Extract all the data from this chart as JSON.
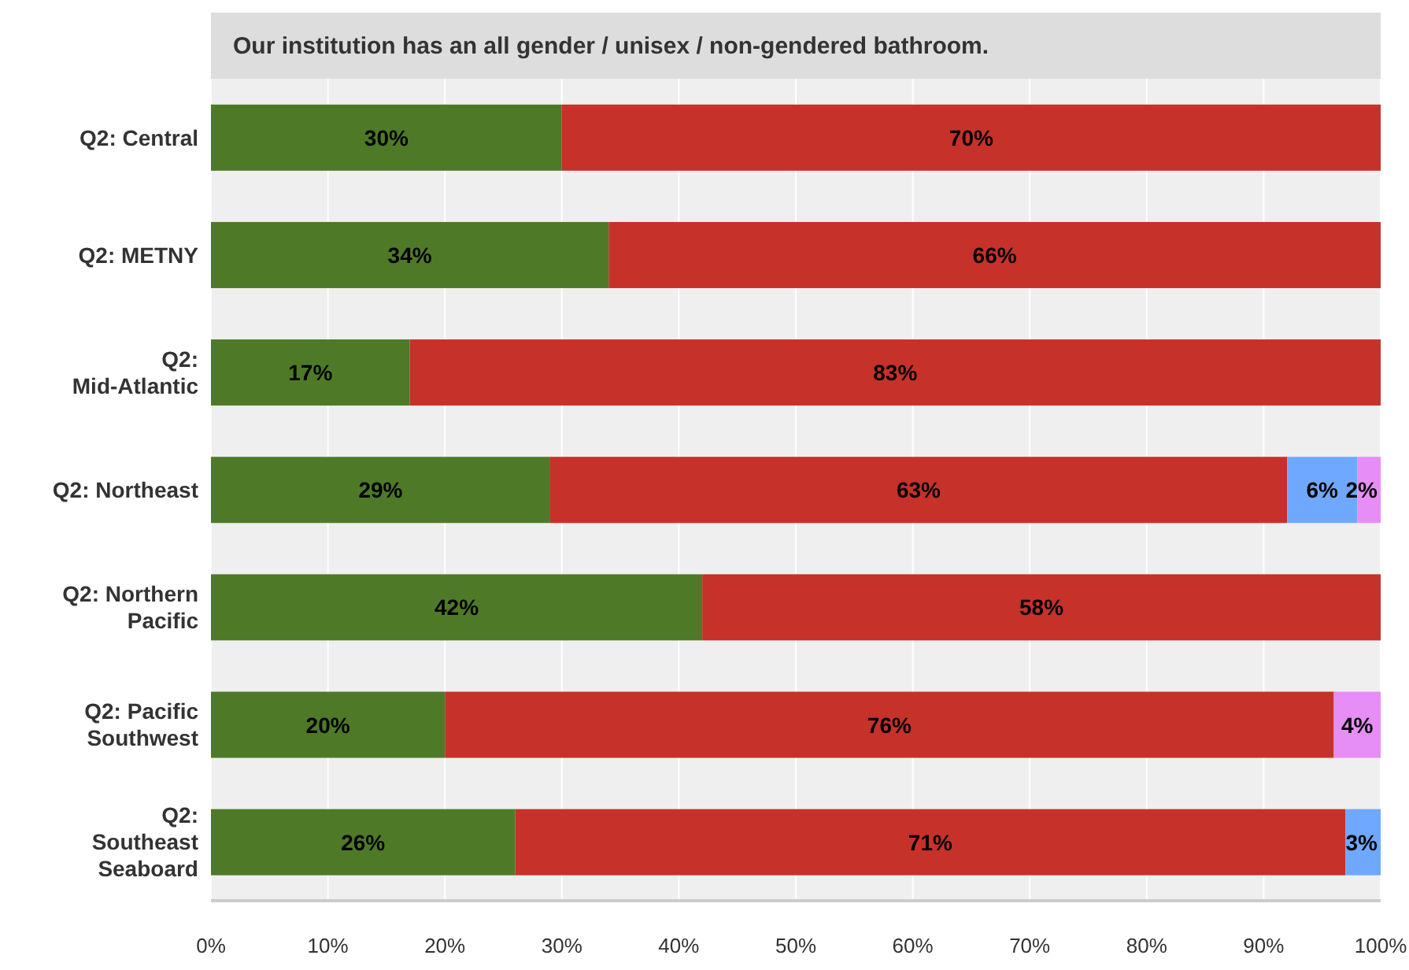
{
  "chart_data": {
    "type": "bar",
    "orientation": "horizontal",
    "stacked": true,
    "title": "Our institution has an all gender / unisex / non-gendered bathroom.",
    "categories": [
      "Q2: Central",
      "Q2: METNY",
      "Q2: Mid-Atlantic",
      "Q2: Northeast",
      "Q2: Northern Pacific",
      "Q2: Pacific Southwest",
      "Q2: Southeast Seaboard"
    ],
    "series": [
      {
        "color": "#4e7a27",
        "values": [
          30,
          34,
          17,
          29,
          42,
          20,
          26
        ],
        "value_labels": [
          "30%",
          "34%",
          "17%",
          "29%",
          "42%",
          "20%",
          "26%"
        ]
      },
      {
        "color": "#c6312a",
        "values": [
          70,
          66,
          83,
          63,
          58,
          76,
          71
        ],
        "value_labels": [
          "70%",
          "66%",
          "83%",
          "63%",
          "58%",
          "76%",
          "71%"
        ]
      },
      {
        "color": "#6fa8ff",
        "values": [
          0,
          0,
          0,
          6,
          0,
          0,
          3
        ],
        "value_labels": [
          null,
          null,
          null,
          "6%",
          null,
          null,
          "3%"
        ]
      },
      {
        "color": "#e68ef5",
        "values": [
          0,
          0,
          0,
          2,
          0,
          4,
          0
        ],
        "value_labels": [
          null,
          null,
          null,
          "2%",
          null,
          "4%",
          null
        ]
      }
    ],
    "xlim": [
      0,
      100
    ],
    "xticks": [
      {
        "value": 0,
        "label": "0%"
      },
      {
        "value": 10,
        "label": "10%"
      },
      {
        "value": 20,
        "label": "20%"
      },
      {
        "value": 30,
        "label": "30%"
      },
      {
        "value": 40,
        "label": "40%"
      },
      {
        "value": 50,
        "label": "50%"
      },
      {
        "value": 60,
        "label": "60%"
      },
      {
        "value": 70,
        "label": "70%"
      },
      {
        "value": 80,
        "label": "80%"
      },
      {
        "value": 90,
        "label": "90%"
      },
      {
        "value": 100,
        "label": "100%"
      }
    ],
    "grid": "x",
    "legend": false
  }
}
